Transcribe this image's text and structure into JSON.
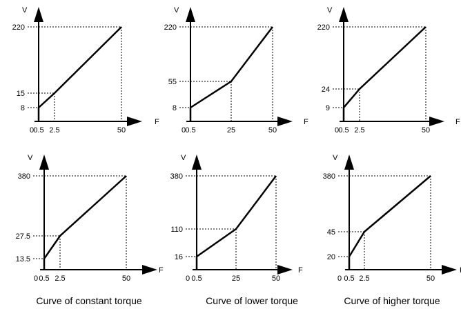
{
  "axes": {
    "y_label": "V",
    "x_label": "F"
  },
  "captions": [
    "Curve of constant torque",
    "Curve of lower torque",
    "Curve of higher torque"
  ],
  "chart_data": [
    {
      "type": "line",
      "xlabel": "F",
      "ylabel": "V",
      "x_ticks": [
        "0",
        "0.5",
        "2.5",
        "50"
      ],
      "y_ticks": [
        "8",
        "15",
        "220"
      ],
      "points": [
        [
          0.5,
          0
        ],
        [
          0.5,
          8
        ],
        [
          2.5,
          15
        ],
        [
          50,
          220
        ]
      ]
    },
    {
      "type": "line",
      "xlabel": "F",
      "ylabel": "V",
      "x_ticks": [
        "0",
        "0.5",
        "25",
        "50"
      ],
      "y_ticks": [
        "8",
        "55",
        "220"
      ],
      "points": [
        [
          0.5,
          0
        ],
        [
          0.5,
          8
        ],
        [
          25,
          55
        ],
        [
          50,
          220
        ]
      ]
    },
    {
      "type": "line",
      "xlabel": "F",
      "ylabel": "V",
      "x_ticks": [
        "0",
        "0.5",
        "2.5",
        "50"
      ],
      "y_ticks": [
        "9",
        "24",
        "220"
      ],
      "points": [
        [
          0.5,
          0
        ],
        [
          0.5,
          9
        ],
        [
          2.5,
          24
        ],
        [
          50,
          220
        ]
      ]
    },
    {
      "type": "line",
      "xlabel": "F",
      "ylabel": "V",
      "x_ticks": [
        "0",
        "0.5",
        "2.5",
        "50"
      ],
      "y_ticks": [
        "13.5",
        "27.5",
        "380"
      ],
      "points": [
        [
          0.5,
          0
        ],
        [
          0.5,
          13.5
        ],
        [
          2.5,
          27.5
        ],
        [
          50,
          380
        ]
      ]
    },
    {
      "type": "line",
      "xlabel": "F",
      "ylabel": "V",
      "x_ticks": [
        "0",
        "0.5",
        "25",
        "50"
      ],
      "y_ticks": [
        "16",
        "110",
        "380"
      ],
      "points": [
        [
          0.5,
          0
        ],
        [
          0.5,
          16
        ],
        [
          25,
          110
        ],
        [
          50,
          380
        ]
      ]
    },
    {
      "type": "line",
      "xlabel": "F",
      "ylabel": "V",
      "x_ticks": [
        "0",
        "0.5",
        "2.5",
        "50"
      ],
      "y_ticks": [
        "20",
        "45",
        "380"
      ],
      "points": [
        [
          0.5,
          0
        ],
        [
          0.5,
          20
        ],
        [
          2.5,
          45
        ],
        [
          50,
          380
        ]
      ]
    }
  ]
}
